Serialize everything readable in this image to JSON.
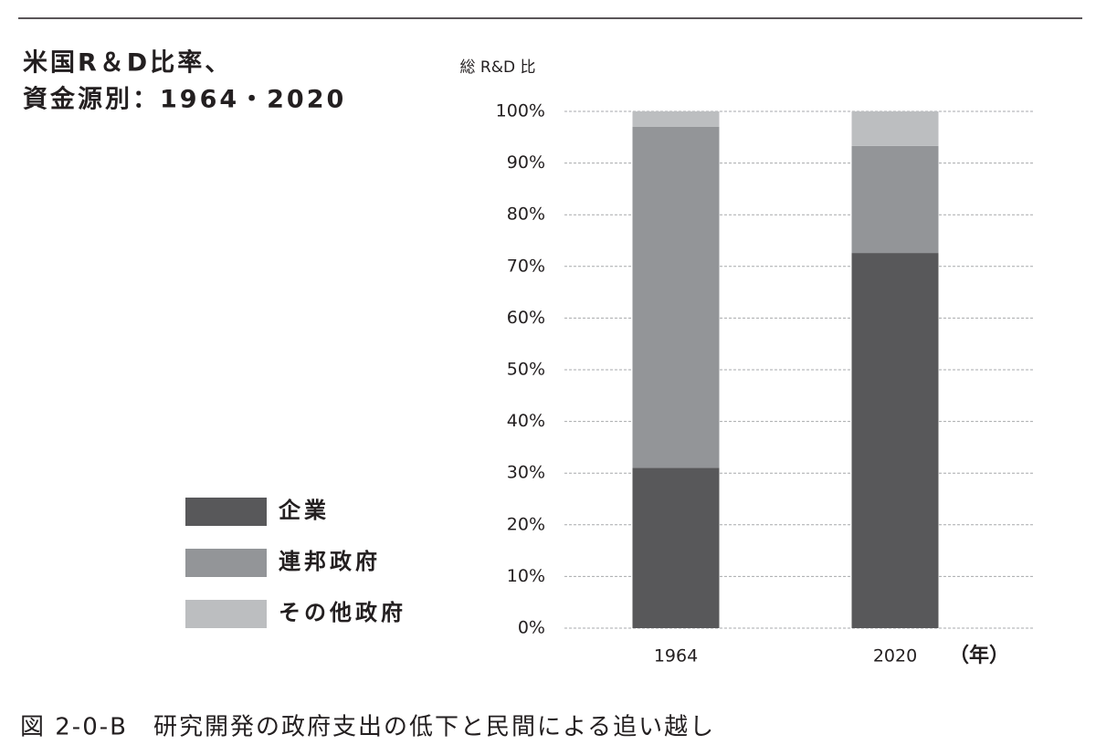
{
  "chart_data": {
    "type": "stacked-bar",
    "title_lines": [
      "米国R＆D比率、",
      "資金源別：1964・2020"
    ],
    "y_label": "総 R&D 比",
    "x_label": "（年）",
    "caption": "図 2-0-B　研究開発の政府支出の低下と民間による追い越し",
    "categories": [
      "1964",
      "2020"
    ],
    "series": [
      {
        "name": "企業",
        "color": "#58585a",
        "values": [
          31,
          72.6
        ]
      },
      {
        "name": "連邦政府",
        "color": "#939598",
        "values": [
          66,
          20.7
        ]
      },
      {
        "name": "その他政府",
        "color": "#bcbec0",
        "values": [
          3,
          6.7
        ]
      }
    ],
    "ylim": [
      0,
      100
    ],
    "yticks": [
      {
        "value": 0,
        "label": "0%"
      },
      {
        "value": 10,
        "label": "10%"
      },
      {
        "value": 20,
        "label": "20%"
      },
      {
        "value": 30,
        "label": "30%"
      },
      {
        "value": 40,
        "label": "40%"
      },
      {
        "value": 50,
        "label": "50%"
      },
      {
        "value": 60,
        "label": "60%"
      },
      {
        "value": 70,
        "label": "70%"
      },
      {
        "value": 80,
        "label": "80%"
      },
      {
        "value": 90,
        "label": "90%"
      },
      {
        "value": 100,
        "label": "100%"
      }
    ],
    "grid": true
  }
}
